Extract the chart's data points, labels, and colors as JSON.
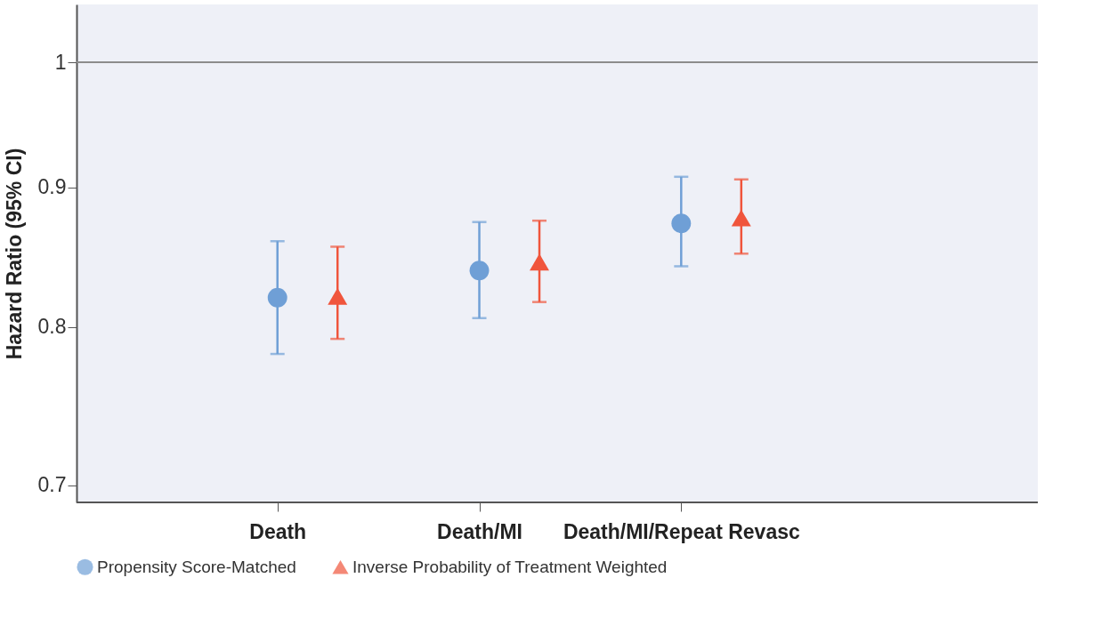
{
  "chart_data": {
    "type": "scatter",
    "ylabel": "Hazard Ratio (95% CI)",
    "categories": [
      "Death",
      "Death/MI",
      "Death/MI/Repeat Revasc"
    ],
    "series": [
      {
        "name": "Propensity Score-Matched",
        "color": "#6f9fd6",
        "marker": "circle",
        "values": [
          0.82,
          0.839,
          0.873
        ],
        "errors": [
          [
            0.782,
            0.86
          ],
          [
            0.806,
            0.874
          ],
          [
            0.842,
            0.908
          ]
        ]
      },
      {
        "name": "Inverse Probability of Treatment Weighted",
        "color": "#f0553c",
        "marker": "triangle",
        "values": [
          0.821,
          0.845,
          0.877
        ],
        "errors": [
          [
            0.792,
            0.856
          ],
          [
            0.817,
            0.875
          ],
          [
            0.851,
            0.906
          ]
        ]
      }
    ],
    "log": true,
    "ylim": [
      0.69,
      1.05
    ],
    "yticks": [
      0.7,
      0.8,
      0.9,
      1
    ],
    "ref_lines": [
      {
        "axis": "y",
        "value": 1,
        "color": "#8c8c8c"
      }
    ],
    "grid": false,
    "legend": "bottom"
  }
}
